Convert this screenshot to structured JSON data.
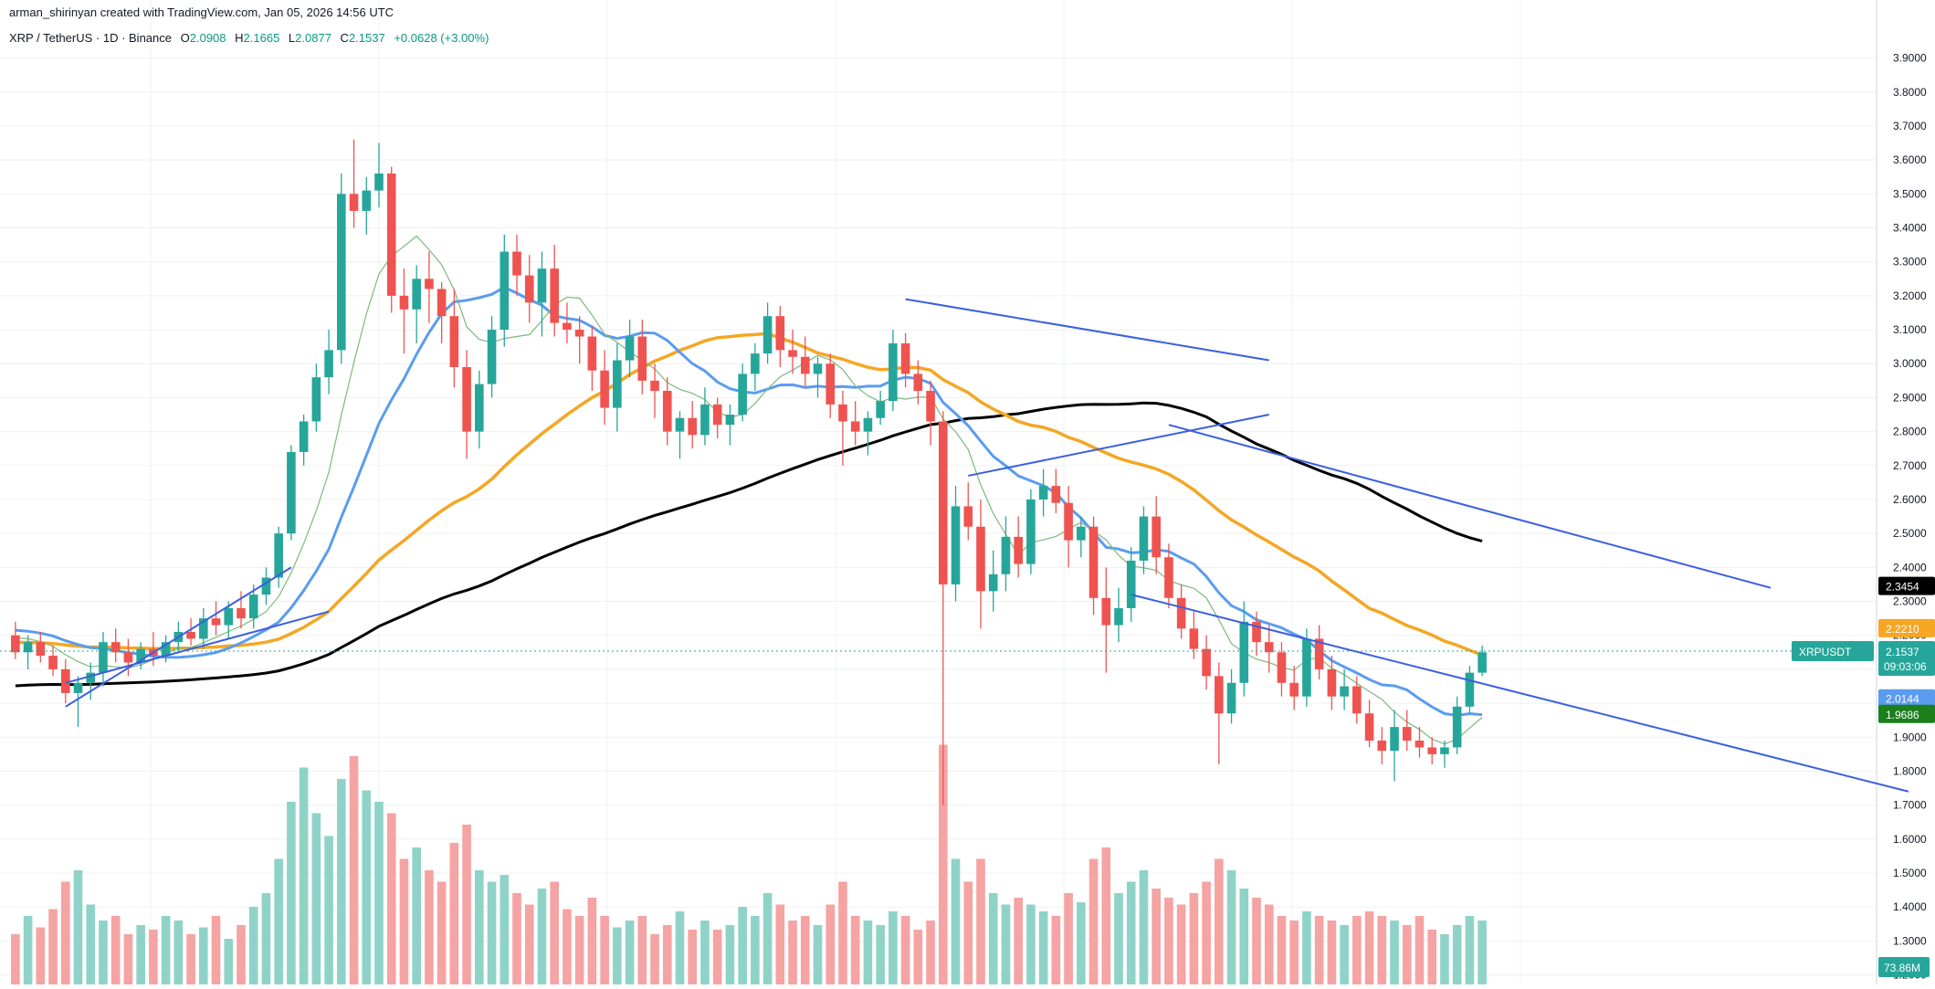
{
  "header": {
    "credit": "arman_shirinyan created with TradingView.com, Jan 05, 2026 14:56 UTC",
    "symbol_line": "XRP / TetherUS · 1D · Binance",
    "open_label": "O",
    "open": "2.0908",
    "high_label": "H",
    "high": "2.1665",
    "low_label": "L",
    "low": "2.0877",
    "close_label": "C",
    "close": "2.1537",
    "change": "+0.0628 (+3.00%)"
  },
  "colors": {
    "up": "#26a69a",
    "down": "#ef5350",
    "vol_up": "#8fd3c8",
    "vol_down": "#f5a3a3",
    "ma_black": "#000000",
    "ma_orange": "#f5a623",
    "ma_blue": "#5b9cf0",
    "ma_green": "#7cb97c",
    "trendline": "#3b5fe0",
    "grid": "#eef0f3",
    "axis_text": "#131722"
  },
  "chart_data": {
    "type": "candlestick",
    "title": "XRP / TetherUS · 1D · Binance",
    "y_axis": {
      "side": "right",
      "ticks": [
        "3.9000",
        "3.8000",
        "3.7000",
        "3.6000",
        "3.5000",
        "3.4000",
        "3.3000",
        "3.2000",
        "3.1000",
        "3.0000",
        "2.9000",
        "2.8000",
        "2.7000",
        "2.6000",
        "2.5000",
        "2.4000",
        "2.3000",
        "2.2000",
        "2.1000",
        "2.0000",
        "1.9000",
        "1.8000",
        "1.7000",
        "1.6000",
        "1.5000",
        "1.4000",
        "1.3000",
        "1.2000"
      ],
      "range": [
        1.18,
        3.95
      ]
    },
    "grid": true,
    "candles": [
      [
        2.2,
        2.24,
        2.13,
        2.15
      ],
      [
        2.15,
        2.2,
        2.1,
        2.18
      ],
      [
        2.18,
        2.21,
        2.12,
        2.14
      ],
      [
        2.14,
        2.17,
        2.08,
        2.1
      ],
      [
        2.1,
        2.13,
        2.0,
        2.03
      ],
      [
        2.03,
        2.08,
        1.93,
        2.06
      ],
      [
        2.06,
        2.12,
        2.01,
        2.09
      ],
      [
        2.09,
        2.21,
        2.05,
        2.18
      ],
      [
        2.18,
        2.22,
        2.12,
        2.15
      ],
      [
        2.15,
        2.19,
        2.08,
        2.12
      ],
      [
        2.12,
        2.18,
        2.1,
        2.16
      ],
      [
        2.16,
        2.21,
        2.11,
        2.14
      ],
      [
        2.14,
        2.2,
        2.12,
        2.18
      ],
      [
        2.18,
        2.24,
        2.15,
        2.21
      ],
      [
        2.21,
        2.25,
        2.17,
        2.19
      ],
      [
        2.19,
        2.28,
        2.16,
        2.25
      ],
      [
        2.25,
        2.3,
        2.2,
        2.23
      ],
      [
        2.23,
        2.3,
        2.19,
        2.28
      ],
      [
        2.28,
        2.33,
        2.22,
        2.25
      ],
      [
        2.25,
        2.35,
        2.22,
        2.32
      ],
      [
        2.32,
        2.4,
        2.29,
        2.37
      ],
      [
        2.37,
        2.52,
        2.34,
        2.5
      ],
      [
        2.5,
        2.76,
        2.48,
        2.74
      ],
      [
        2.74,
        2.85,
        2.7,
        2.83
      ],
      [
        2.83,
        3.0,
        2.8,
        2.96
      ],
      [
        2.96,
        3.1,
        2.91,
        3.04
      ],
      [
        3.04,
        3.56,
        3.0,
        3.5
      ],
      [
        3.5,
        3.66,
        3.4,
        3.45
      ],
      [
        3.45,
        3.55,
        3.38,
        3.51
      ],
      [
        3.51,
        3.65,
        3.46,
        3.56
      ],
      [
        3.56,
        3.58,
        3.15,
        3.2
      ],
      [
        3.2,
        3.28,
        3.03,
        3.16
      ],
      [
        3.16,
        3.29,
        3.06,
        3.25
      ],
      [
        3.25,
        3.33,
        3.12,
        3.22
      ],
      [
        3.22,
        3.24,
        3.06,
        3.14
      ],
      [
        3.14,
        3.22,
        2.93,
        2.99
      ],
      [
        2.99,
        3.04,
        2.72,
        2.8
      ],
      [
        2.8,
        2.98,
        2.75,
        2.94
      ],
      [
        2.94,
        3.14,
        2.9,
        3.1
      ],
      [
        3.1,
        3.38,
        3.05,
        3.33
      ],
      [
        3.33,
        3.38,
        3.2,
        3.26
      ],
      [
        3.26,
        3.32,
        3.12,
        3.18
      ],
      [
        3.18,
        3.33,
        3.08,
        3.28
      ],
      [
        3.28,
        3.35,
        3.08,
        3.12
      ],
      [
        3.12,
        3.18,
        3.06,
        3.1
      ],
      [
        3.1,
        3.14,
        3.0,
        3.08
      ],
      [
        3.08,
        3.11,
        2.92,
        2.98
      ],
      [
        2.98,
        3.04,
        2.82,
        2.87
      ],
      [
        2.87,
        3.06,
        2.8,
        3.01
      ],
      [
        3.01,
        3.13,
        2.96,
        3.08
      ],
      [
        3.08,
        3.13,
        2.91,
        2.95
      ],
      [
        2.95,
        3.0,
        2.84,
        2.92
      ],
      [
        2.92,
        2.96,
        2.76,
        2.8
      ],
      [
        2.8,
        2.86,
        2.72,
        2.84
      ],
      [
        2.84,
        2.89,
        2.75,
        2.79
      ],
      [
        2.79,
        2.93,
        2.76,
        2.88
      ],
      [
        2.88,
        2.9,
        2.78,
        2.82
      ],
      [
        2.82,
        2.88,
        2.76,
        2.85
      ],
      [
        2.85,
        3.0,
        2.83,
        2.97
      ],
      [
        2.97,
        3.06,
        2.92,
        3.03
      ],
      [
        3.03,
        3.18,
        3.0,
        3.14
      ],
      [
        3.14,
        3.17,
        2.99,
        3.04
      ],
      [
        3.04,
        3.1,
        2.97,
        3.02
      ],
      [
        3.02,
        3.08,
        2.93,
        2.97
      ],
      [
        2.97,
        3.02,
        2.9,
        3.0
      ],
      [
        3.0,
        3.03,
        2.84,
        2.88
      ],
      [
        2.88,
        2.92,
        2.7,
        2.83
      ],
      [
        2.83,
        2.89,
        2.76,
        2.8
      ],
      [
        2.8,
        2.86,
        2.73,
        2.84
      ],
      [
        2.84,
        2.92,
        2.82,
        2.89
      ],
      [
        2.89,
        3.1,
        2.86,
        3.06
      ],
      [
        3.06,
        3.09,
        2.93,
        2.97
      ],
      [
        2.97,
        3.01,
        2.88,
        2.92
      ],
      [
        2.92,
        2.95,
        2.76,
        2.83
      ],
      [
        2.83,
        2.86,
        1.7,
        2.35
      ],
      [
        2.35,
        2.64,
        2.3,
        2.58
      ],
      [
        2.58,
        2.65,
        2.48,
        2.52
      ],
      [
        2.52,
        2.6,
        2.22,
        2.33
      ],
      [
        2.33,
        2.45,
        2.27,
        2.38
      ],
      [
        2.38,
        2.55,
        2.33,
        2.49
      ],
      [
        2.49,
        2.55,
        2.37,
        2.41
      ],
      [
        2.41,
        2.63,
        2.38,
        2.6
      ],
      [
        2.6,
        2.69,
        2.55,
        2.64
      ],
      [
        2.64,
        2.69,
        2.56,
        2.59
      ],
      [
        2.59,
        2.64,
        2.4,
        2.48
      ],
      [
        2.48,
        2.55,
        2.43,
        2.52
      ],
      [
        2.52,
        2.55,
        2.26,
        2.31
      ],
      [
        2.31,
        2.4,
        2.09,
        2.23
      ],
      [
        2.23,
        2.34,
        2.18,
        2.28
      ],
      [
        2.28,
        2.46,
        2.24,
        2.42
      ],
      [
        2.42,
        2.58,
        2.38,
        2.55
      ],
      [
        2.55,
        2.61,
        2.38,
        2.43
      ],
      [
        2.43,
        2.47,
        2.28,
        2.31
      ],
      [
        2.31,
        2.35,
        2.19,
        2.22
      ],
      [
        2.22,
        2.27,
        2.13,
        2.16
      ],
      [
        2.16,
        2.2,
        2.04,
        2.08
      ],
      [
        2.08,
        2.12,
        1.82,
        1.97
      ],
      [
        1.97,
        2.1,
        1.94,
        2.06
      ],
      [
        2.06,
        2.3,
        2.02,
        2.24
      ],
      [
        2.24,
        2.27,
        2.14,
        2.18
      ],
      [
        2.18,
        2.23,
        2.09,
        2.15
      ],
      [
        2.15,
        2.18,
        2.02,
        2.06
      ],
      [
        2.06,
        2.11,
        1.98,
        2.02
      ],
      [
        2.02,
        2.22,
        1.99,
        2.19
      ],
      [
        2.19,
        2.23,
        2.07,
        2.1
      ],
      [
        2.1,
        2.14,
        1.98,
        2.02
      ],
      [
        2.02,
        2.1,
        1.98,
        2.05
      ],
      [
        2.05,
        2.08,
        1.94,
        1.97
      ],
      [
        1.97,
        2.01,
        1.87,
        1.89
      ],
      [
        1.89,
        1.93,
        1.82,
        1.86
      ],
      [
        1.86,
        1.98,
        1.77,
        1.93
      ],
      [
        1.93,
        1.98,
        1.86,
        1.89
      ],
      [
        1.89,
        1.93,
        1.84,
        1.87
      ],
      [
        1.87,
        1.9,
        1.82,
        1.85
      ],
      [
        1.85,
        1.89,
        1.81,
        1.87
      ],
      [
        1.87,
        2.02,
        1.85,
        1.99
      ],
      [
        1.99,
        2.11,
        1.97,
        2.09
      ],
      [
        2.09,
        2.17,
        2.08,
        2.15
      ]
    ],
    "volume": [
      0.22,
      0.3,
      0.25,
      0.33,
      0.45,
      0.5,
      0.35,
      0.28,
      0.3,
      0.22,
      0.26,
      0.24,
      0.3,
      0.28,
      0.22,
      0.25,
      0.3,
      0.2,
      0.26,
      0.34,
      0.4,
      0.55,
      0.8,
      0.95,
      0.75,
      0.65,
      0.9,
      1.0,
      0.85,
      0.8,
      0.75,
      0.55,
      0.6,
      0.5,
      0.45,
      0.62,
      0.7,
      0.5,
      0.45,
      0.48,
      0.4,
      0.35,
      0.42,
      0.45,
      0.33,
      0.3,
      0.38,
      0.3,
      0.25,
      0.28,
      0.3,
      0.22,
      0.26,
      0.32,
      0.24,
      0.28,
      0.24,
      0.26,
      0.34,
      0.3,
      0.4,
      0.35,
      0.28,
      0.3,
      0.26,
      0.35,
      0.45,
      0.3,
      0.28,
      0.26,
      0.32,
      0.3,
      0.24,
      0.28,
      1.05,
      0.55,
      0.45,
      0.55,
      0.4,
      0.35,
      0.38,
      0.35,
      0.32,
      0.3,
      0.4,
      0.36,
      0.55,
      0.6,
      0.4,
      0.45,
      0.5,
      0.42,
      0.38,
      0.35,
      0.4,
      0.45,
      0.55,
      0.5,
      0.42,
      0.38,
      0.35,
      0.3,
      0.28,
      0.32,
      0.3,
      0.28,
      0.26,
      0.3,
      0.32,
      0.3,
      0.28,
      0.26,
      0.3,
      0.24,
      0.22,
      0.26,
      0.3,
      0.28
    ],
    "ma_lines": [
      {
        "color_key": "ma_black",
        "last_value": "2.3454"
      },
      {
        "color_key": "ma_orange",
        "last_value": "2.2210"
      },
      {
        "color_key": "ma_blue",
        "last_value": "2.0144"
      },
      {
        "color_key": "ma_green",
        "last_value": "1.9686"
      }
    ],
    "last_price": {
      "symbol": "XRPUSDT",
      "value": "2.1537",
      "countdown": "09:03:06"
    },
    "volume_last_label": "73.86M"
  }
}
